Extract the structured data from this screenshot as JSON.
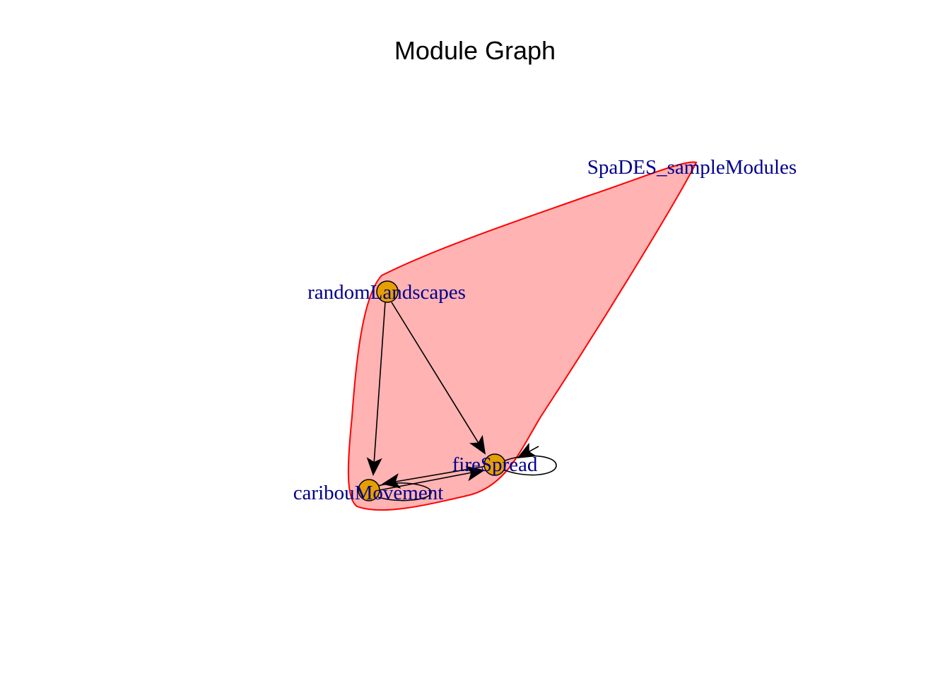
{
  "title": "Module Graph",
  "colors": {
    "background": "#ffffff",
    "group_fill": "#ffb3b3",
    "group_stroke": "#ff0000",
    "vertex_fill": "#e69f00",
    "vertex_stroke": "#000000",
    "label": "#00008b",
    "edge": "#000000"
  },
  "graph": {
    "group": {
      "label": "SpaDES_sampleModules",
      "members": [
        "SpaDES_sampleModules",
        "randomLandscapes",
        "fireSpread",
        "caribouMovement"
      ]
    },
    "vertices": [
      {
        "id": "SpaDES_sampleModules",
        "label": "SpaDES_sampleModules",
        "shape": "none"
      },
      {
        "id": "randomLandscapes",
        "label": "randomLandscapes",
        "shape": "circle"
      },
      {
        "id": "fireSpread",
        "label": "fireSpread",
        "shape": "circle"
      },
      {
        "id": "caribouMovement",
        "label": "caribouMovement",
        "shape": "circle"
      }
    ],
    "edges": [
      {
        "from": "randomLandscapes",
        "to": "caribouMovement"
      },
      {
        "from": "randomLandscapes",
        "to": "fireSpread"
      },
      {
        "from": "SpaDES_sampleModules",
        "to": "fireSpread"
      },
      {
        "from": "fireSpread",
        "to": "caribouMovement"
      },
      {
        "from": "caribouMovement",
        "to": "fireSpread"
      },
      {
        "from": "fireSpread",
        "to": "fireSpread"
      },
      {
        "from": "caribouMovement",
        "to": "caribouMovement"
      }
    ]
  }
}
